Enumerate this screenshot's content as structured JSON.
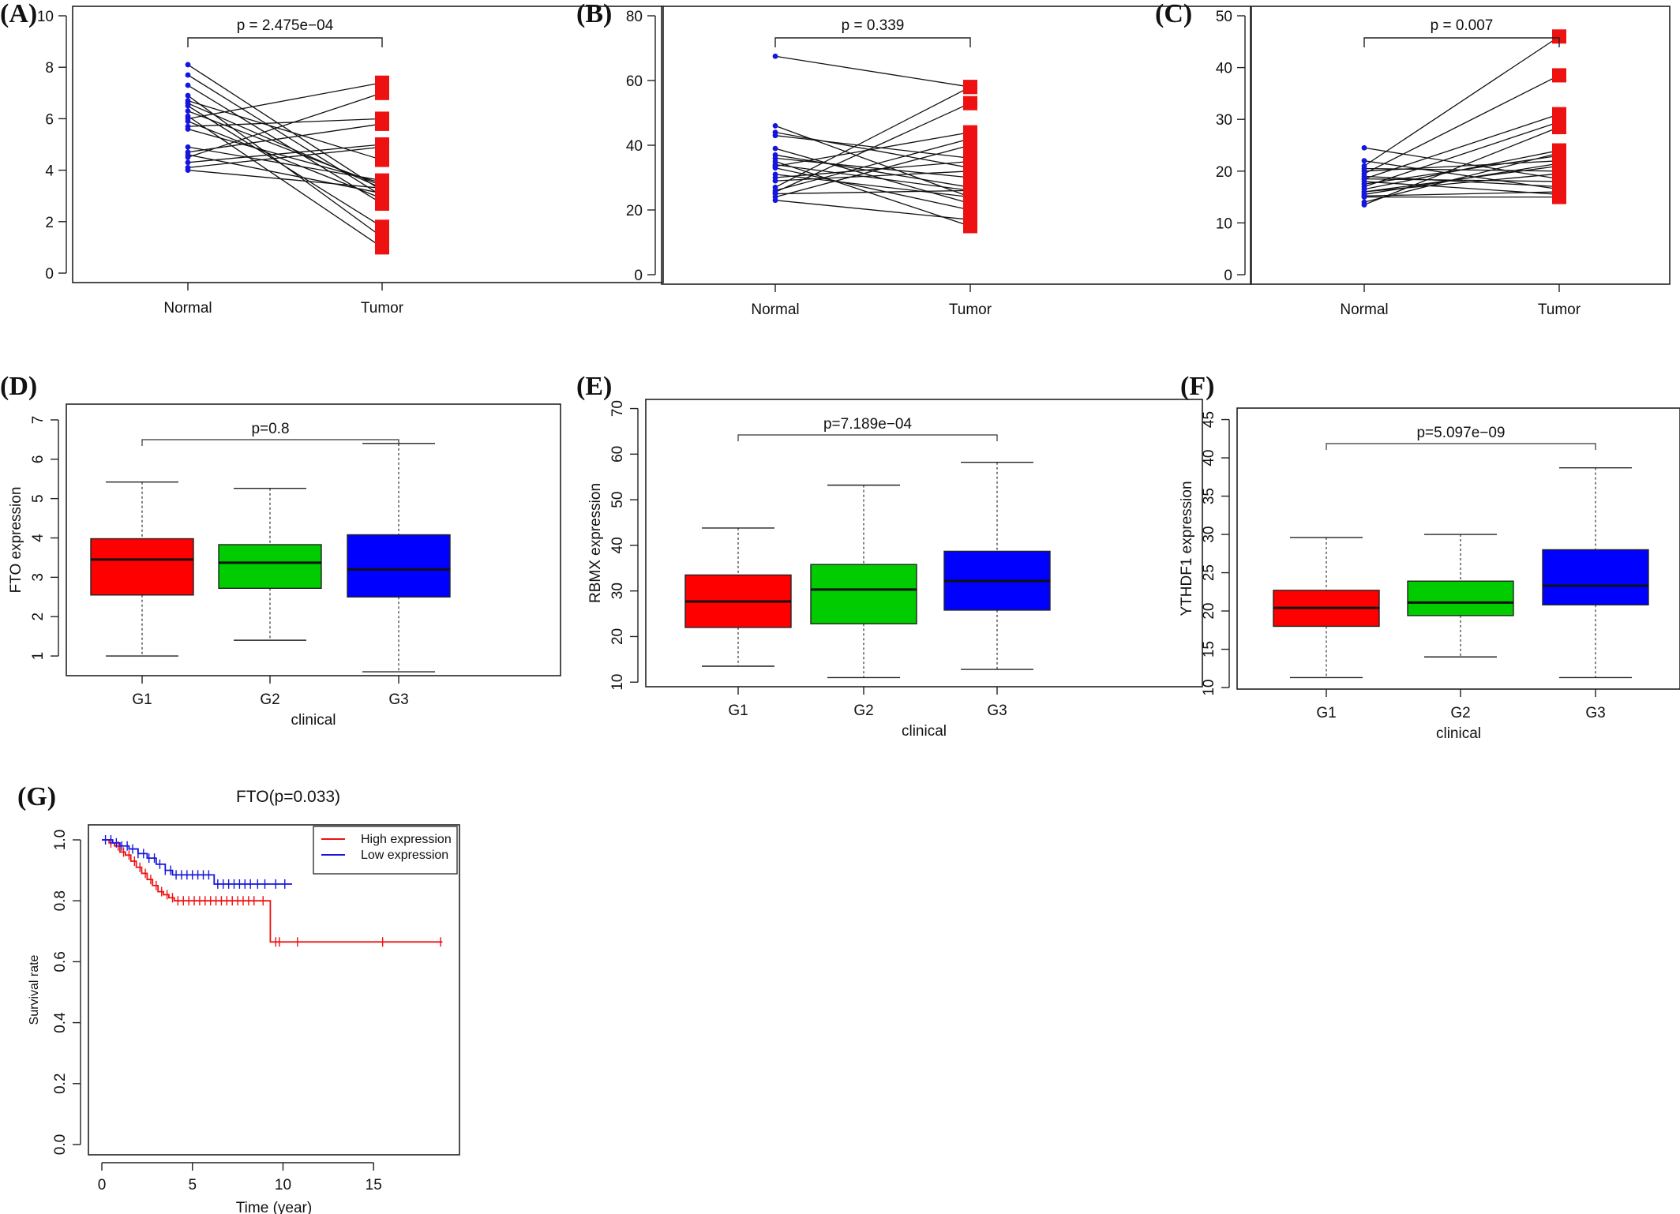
{
  "chart_data": [
    {
      "id": "A",
      "panel_label": "(A)",
      "type": "paired-scatter",
      "categories": [
        "Normal",
        "Tumor"
      ],
      "ylim": [
        0,
        10
      ],
      "yticks": [
        0,
        2,
        4,
        6,
        8,
        10
      ],
      "annotation": "p = 2.475e−04",
      "colors": {
        "normal": "#1515e0",
        "tumor": "#ee1111"
      },
      "pairs": [
        [
          8.1,
          3.2
        ],
        [
          7.7,
          3.0
        ],
        [
          7.3,
          2.7
        ],
        [
          6.9,
          1.4
        ],
        [
          6.7,
          4.4
        ],
        [
          6.6,
          3.3
        ],
        [
          6.5,
          1.8
        ],
        [
          6.3,
          3.4
        ],
        [
          6.1,
          1.0
        ],
        [
          6.0,
          7.4
        ],
        [
          5.9,
          2.9
        ],
        [
          5.7,
          6.0
        ],
        [
          5.6,
          3.5
        ],
        [
          4.9,
          3.6
        ],
        [
          4.7,
          5.8
        ],
        [
          4.6,
          3.1
        ],
        [
          4.5,
          7.0
        ],
        [
          4.3,
          5.0
        ],
        [
          4.1,
          4.9
        ],
        [
          4.0,
          3.3
        ]
      ]
    },
    {
      "id": "B",
      "panel_label": "(B)",
      "type": "paired-scatter",
      "categories": [
        "Normal",
        "Tumor"
      ],
      "ylim": [
        0,
        80
      ],
      "yticks": [
        0,
        20,
        40,
        60,
        80
      ],
      "annotation": "p = 0.339",
      "colors": {
        "normal": "#1515e0",
        "tumor": "#ee1111"
      },
      "pairs": [
        [
          67.5,
          58.0
        ],
        [
          46.0,
          24.0
        ],
        [
          44.0,
          33.0
        ],
        [
          43.0,
          36.0
        ],
        [
          39.0,
          22.0
        ],
        [
          37.0,
          27.0
        ],
        [
          36.0,
          30.0
        ],
        [
          35.0,
          15.0
        ],
        [
          34.0,
          26.0
        ],
        [
          33.5,
          44.0
        ],
        [
          33.0,
          20.0
        ],
        [
          31.0,
          24.0
        ],
        [
          30.0,
          35.0
        ],
        [
          29.0,
          32.0
        ],
        [
          27.0,
          58.0
        ],
        [
          26.0,
          42.0
        ],
        [
          25.5,
          53.0
        ],
        [
          25.0,
          26.0
        ],
        [
          24.0,
          40.0
        ],
        [
          23.0,
          17.0
        ]
      ]
    },
    {
      "id": "C",
      "panel_label": "(C)",
      "type": "paired-scatter",
      "categories": [
        "Normal",
        "Tumor"
      ],
      "ylim": [
        0,
        50
      ],
      "yticks": [
        0,
        10,
        20,
        30,
        40,
        50
      ],
      "annotation": "p = 0.007",
      "colors": {
        "normal": "#1515e0",
        "tumor": "#ee1111"
      },
      "pairs": [
        [
          24.5,
          18.5
        ],
        [
          22.0,
          16.5
        ],
        [
          21.0,
          46.0
        ],
        [
          20.5,
          20.0
        ],
        [
          20.0,
          22.0
        ],
        [
          19.5,
          38.5
        ],
        [
          19.0,
          17.0
        ],
        [
          18.5,
          31.0
        ],
        [
          18.0,
          15.5
        ],
        [
          17.5,
          23.0
        ],
        [
          17.0,
          29.5
        ],
        [
          16.5,
          24.0
        ],
        [
          16.0,
          19.5
        ],
        [
          15.5,
          21.5
        ],
        [
          15.0,
          15.0
        ],
        [
          14.0,
          23.5
        ],
        [
          13.5,
          28.5
        ],
        [
          18.5,
          18.0
        ],
        [
          16.0,
          21.0
        ],
        [
          15.2,
          16.0
        ]
      ]
    },
    {
      "id": "D",
      "panel_label": "(D)",
      "type": "box",
      "categories": [
        "G1",
        "G2",
        "G3"
      ],
      "colors": [
        "#ff0000",
        "#00cc00",
        "#0000ff"
      ],
      "ylim": [
        0.5,
        7.4
      ],
      "yticks": [
        1,
        2,
        3,
        4,
        5,
        6,
        7
      ],
      "ylabel": "FTO expression",
      "xlabel": "clinical",
      "annotation": "p=0.8",
      "boxes": [
        {
          "min": 1.0,
          "q1": 2.55,
          "median": 3.45,
          "q3": 3.98,
          "max": 5.42
        },
        {
          "min": 1.4,
          "q1": 2.72,
          "median": 3.37,
          "q3": 3.83,
          "max": 5.26
        },
        {
          "min": 0.6,
          "q1": 2.5,
          "median": 3.2,
          "q3": 4.08,
          "max": 6.4
        }
      ]
    },
    {
      "id": "E",
      "panel_label": "(E)",
      "type": "box",
      "categories": [
        "G1",
        "G2",
        "G3"
      ],
      "colors": [
        "#ff0000",
        "#00cc00",
        "#0000ff"
      ],
      "ylim": [
        9,
        72
      ],
      "yticks": [
        10,
        20,
        30,
        40,
        50,
        60,
        70
      ],
      "ylabel": "RBMX expression",
      "xlabel": "clinical",
      "annotation": "p=7.189e−04",
      "boxes": [
        {
          "min": 13.5,
          "q1": 22.0,
          "median": 27.7,
          "q3": 33.5,
          "max": 43.8
        },
        {
          "min": 11.0,
          "q1": 22.8,
          "median": 30.3,
          "q3": 35.8,
          "max": 53.2
        },
        {
          "min": 12.8,
          "q1": 25.8,
          "median": 32.2,
          "q3": 38.7,
          "max": 58.2
        }
      ]
    },
    {
      "id": "F",
      "panel_label": "(F)",
      "type": "box",
      "categories": [
        "G1",
        "G2",
        "G3"
      ],
      "colors": [
        "#ff0000",
        "#00cc00",
        "#0000ff"
      ],
      "ylim": [
        9.8,
        46.5
      ],
      "yticks": [
        10,
        15,
        20,
        25,
        30,
        35,
        40,
        45
      ],
      "ylabel": "YTHDF1 expression",
      "xlabel": "clinical",
      "annotation": "p=5.097e−09",
      "boxes": [
        {
          "min": 11.3,
          "q1": 18.0,
          "median": 20.4,
          "q3": 22.7,
          "max": 29.6
        },
        {
          "min": 14.0,
          "q1": 19.4,
          "median": 21.1,
          "q3": 23.9,
          "max": 30.0
        },
        {
          "min": 11.3,
          "q1": 20.8,
          "median": 23.3,
          "q3": 28.0,
          "max": 38.7
        }
      ]
    },
    {
      "id": "G",
      "panel_label": "(G)",
      "type": "survival",
      "title": "FTO(p=0.033)",
      "xlabel": "Time (year)",
      "ylabel": "Survival rate",
      "xlim": [
        0,
        19
      ],
      "xticks": [
        0,
        5,
        10,
        15
      ],
      "ylim": [
        0,
        1.02
      ],
      "yticks": [
        0.0,
        0.2,
        0.4,
        0.6,
        0.8,
        1.0
      ],
      "legend_position": "top-right",
      "series": [
        {
          "name": "High expression",
          "color": "#ee1111",
          "steps": [
            [
              0,
              1.0
            ],
            [
              0.4,
              0.99
            ],
            [
              0.7,
              0.98
            ],
            [
              1.0,
              0.96
            ],
            [
              1.3,
              0.95
            ],
            [
              1.6,
              0.93
            ],
            [
              1.9,
              0.91
            ],
            [
              2.2,
              0.89
            ],
            [
              2.5,
              0.87
            ],
            [
              2.8,
              0.85
            ],
            [
              3.1,
              0.83
            ],
            [
              3.4,
              0.82
            ],
            [
              3.7,
              0.81
            ],
            [
              4.0,
              0.8
            ],
            [
              9.3,
              0.665
            ],
            [
              18.8,
              0.665
            ]
          ],
          "censor_times": [
            0.5,
            0.9,
            1.2,
            1.5,
            1.8,
            2.1,
            2.4,
            2.7,
            3.0,
            3.3,
            3.6,
            3.9,
            4.2,
            4.5,
            4.8,
            5.1,
            5.4,
            5.7,
            6.0,
            6.3,
            6.6,
            6.9,
            7.2,
            7.5,
            7.8,
            8.1,
            8.4,
            8.9,
            9.6,
            9.8,
            10.8,
            15.5,
            18.7
          ]
        },
        {
          "name": "Low expression",
          "color": "#1515dd",
          "steps": [
            [
              0,
              1.0
            ],
            [
              0.6,
              0.99
            ],
            [
              1.0,
              0.98
            ],
            [
              1.5,
              0.97
            ],
            [
              2.0,
              0.955
            ],
            [
              2.5,
              0.94
            ],
            [
              3.0,
              0.92
            ],
            [
              3.5,
              0.9
            ],
            [
              3.9,
              0.885
            ],
            [
              6.2,
              0.855
            ],
            [
              10.5,
              0.855
            ]
          ],
          "censor_times": [
            0.2,
            0.5,
            0.8,
            1.1,
            1.4,
            1.7,
            2.0,
            2.3,
            2.6,
            2.9,
            3.2,
            3.5,
            3.8,
            4.1,
            4.4,
            4.7,
            5.0,
            5.3,
            5.6,
            5.9,
            6.4,
            6.7,
            7.0,
            7.3,
            7.6,
            7.9,
            8.2,
            8.6,
            9.0,
            9.6,
            10.1
          ]
        }
      ]
    }
  ]
}
